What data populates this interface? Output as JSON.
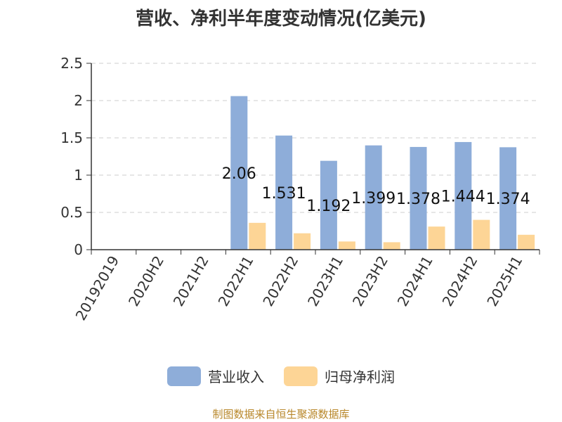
{
  "chart_data": {
    "type": "bar",
    "title": "营收、净利半年度变动情况(亿美元)",
    "categories": [
      "20192019",
      "2020H2",
      "2021H2",
      "2022H1",
      "2022H2",
      "2023H1",
      "2023H2",
      "2024H1",
      "2024H2",
      "2025H1"
    ],
    "series": [
      {
        "name": "营业收入",
        "color": "#8eadd9",
        "values": [
          0,
          0,
          0,
          2.06,
          1.531,
          1.192,
          1.399,
          1.378,
          1.444,
          1.374
        ],
        "labels": [
          "",
          "",
          "",
          "2.06",
          "1.531",
          "1.192",
          "1.399",
          "1.378",
          "1.444",
          "1.374"
        ]
      },
      {
        "name": "归母净利润",
        "color": "#fdd596",
        "values": [
          0,
          0,
          0,
          0.36,
          0.22,
          0.11,
          0.1,
          0.31,
          0.4,
          0.2
        ]
      }
    ],
    "yticks": [
      "0",
      "0.5",
      "1",
      "1.5",
      "2",
      "2.5"
    ],
    "ylim": [
      0,
      2.5
    ],
    "grid": true,
    "legend_position": "bottom"
  },
  "source_note": "制图数据来自恒生聚源数据库"
}
